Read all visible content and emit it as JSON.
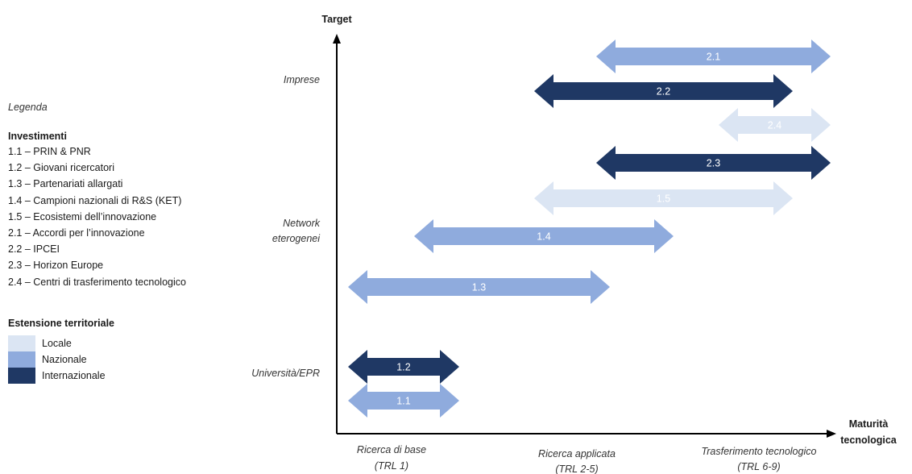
{
  "legend": {
    "title": "Legenda",
    "investments_heading": "Investimenti",
    "investments": [
      "1.1 – PRIN & PNR",
      "1.2 – Giovani ricercatori",
      "1.3 – Partenariati allargati",
      "1.4 – Campioni nazionali di R&S (KET)",
      "1.5 – Ecosistemi dell’innovazione",
      "2.1 – Accordi per l’innovazione",
      "2.2 – IPCEI",
      "2.3 – Horizon Europe",
      "2.4 – Centri di trasferimento tecnologico"
    ],
    "extension_heading": "Estensione territoriale",
    "extension": [
      {
        "label": "Locale",
        "color": "#dbe5f3"
      },
      {
        "label": "Nazionale",
        "color": "#8fabdd"
      },
      {
        "label": "Internazionale",
        "color": "#1f3864"
      }
    ]
  },
  "axes": {
    "y_title": "Target",
    "x_title_line1": "Maturità",
    "x_title_line2": "tecnologica",
    "y_categories": [
      {
        "lines": [
          "Imprese"
        ]
      },
      {
        "lines": [
          "Network",
          "eterogenei"
        ]
      },
      {
        "lines": [
          "Università/EPR"
        ]
      }
    ],
    "x_categories": [
      {
        "lines": [
          "Ricerca di base",
          "(TRL 1)"
        ]
      },
      {
        "lines": [
          "Ricerca applicata",
          "(TRL 2-5)"
        ]
      },
      {
        "lines": [
          "Trasferimento tecnologico",
          "(TRL 6-9)"
        ]
      }
    ]
  },
  "arrows": [
    {
      "label": "2.1",
      "level": "Nazionale"
    },
    {
      "label": "2.2",
      "level": "Internazionale"
    },
    {
      "label": "2.4",
      "level": "Locale"
    },
    {
      "label": "2.3",
      "level": "Internazionale"
    },
    {
      "label": "1.5",
      "level": "Locale"
    },
    {
      "label": "1.4",
      "level": "Nazionale"
    },
    {
      "label": "1.3",
      "level": "Nazionale"
    },
    {
      "label": "1.2",
      "level": "Internazionale"
    },
    {
      "label": "1.1",
      "level": "Nazionale"
    }
  ]
}
